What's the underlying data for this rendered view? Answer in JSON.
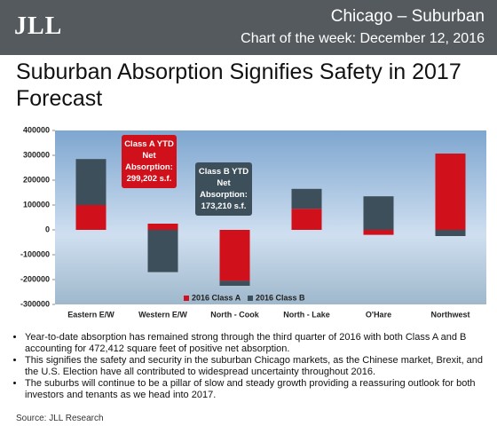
{
  "header": {
    "logo": "JLL",
    "region": "Chicago – Suburban",
    "subtitle": "Chart of the week: December 12, 2016"
  },
  "chart_data": {
    "type": "bar",
    "stacked": true,
    "title": "Suburban Absorption Signifies Safety in 2017 Forecast",
    "categories": [
      "Eastern E/W",
      "Western E/W",
      "North - Cook",
      "North - Lake",
      "O'Hare",
      "Northwest"
    ],
    "series": [
      {
        "name": "2016 Class A",
        "color": "#d0101a",
        "values": [
          100000,
          25000,
          -205000,
          85000,
          -20000,
          307000
        ]
      },
      {
        "name": "2016 Class B",
        "color": "#3d4f5a",
        "values": [
          185000,
          -170000,
          -20000,
          80000,
          135000,
          -25000
        ]
      }
    ],
    "ylim": [
      -300000,
      400000
    ],
    "yticks": [
      400000,
      300000,
      200000,
      100000,
      0,
      -100000,
      -200000,
      -300000
    ],
    "legend": "bottom-center",
    "annotations": [
      {
        "text": "Class A YTD Net Absorption: 299,202 s.f.",
        "color": "#d0101a"
      },
      {
        "text": "Class B YTD Net Absorption: 173,210 s.f.",
        "color": "#3d4f5a"
      }
    ]
  },
  "bullets": [
    "Year-to-date absorption has remained strong through the third quarter of 2016 with both Class A and B accounting for 472,412 square feet of positive net absorption.",
    "This signifies the safety and security in the suburban Chicago markets, as the Chinese market, Brexit, and the U.S. Election have all contributed to widespread uncertainty throughout 2016.",
    "The suburbs will continue to be a pillar of slow and steady growth providing a reassuring outlook for both investors and tenants as we head into 2017."
  ],
  "source": "Source: JLL Research"
}
